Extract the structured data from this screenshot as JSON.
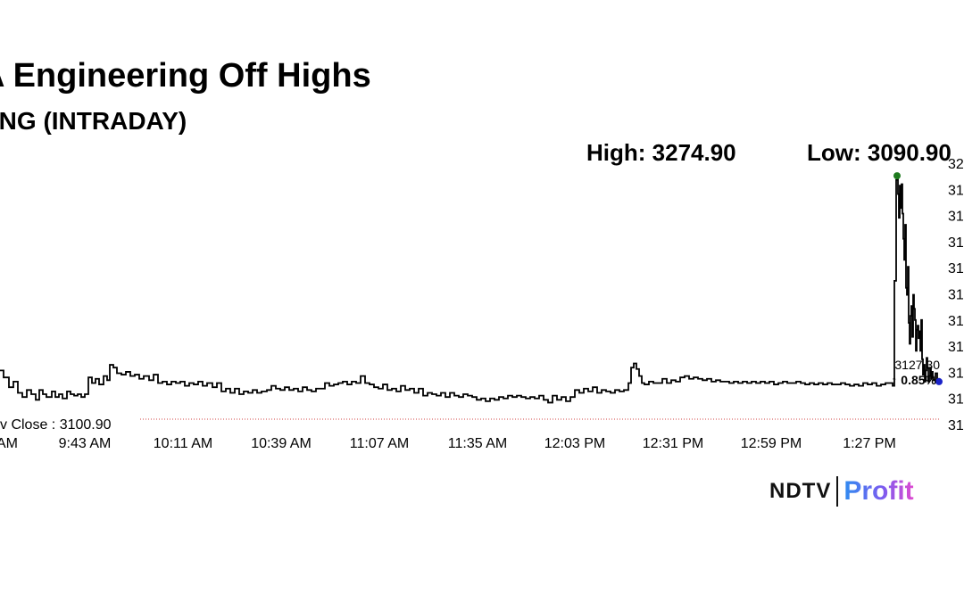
{
  "chart_data": {
    "type": "line",
    "title": "A Engineering Off Highs",
    "subtitle": "ENG (INTRADAY)",
    "high_label": "High: 3274.90",
    "low_label": "Low: 3090.90",
    "prev_close": 3100.9,
    "prev_close_label": "v Close : 3100.90",
    "last_price_label": "3127.30",
    "change_label": "↑ 0.85%",
    "x_ticks": [
      "AM",
      "9:43 AM",
      "10:11 AM",
      "10:39 AM",
      "11:07 AM",
      "11:35 AM",
      "12:03 PM",
      "12:31 PM",
      "12:59 PM",
      "1:27 PM"
    ],
    "y_ticks": [
      "32",
      "31",
      "31",
      "31",
      "31",
      "31",
      "31",
      "31",
      "31",
      "31",
      "31"
    ],
    "ylim": [
      3098,
      3277
    ],
    "series": [
      {
        "values": [
          [
            0,
            3136
          ],
          [
            4,
            3131
          ],
          [
            10,
            3124
          ],
          [
            15,
            3128
          ],
          [
            20,
            3120
          ],
          [
            25,
            3117
          ],
          [
            30,
            3122
          ],
          [
            35,
            3119
          ],
          [
            40,
            3115
          ],
          [
            44,
            3122
          ],
          [
            48,
            3119
          ],
          [
            52,
            3117
          ],
          [
            58,
            3121
          ],
          [
            62,
            3117
          ],
          [
            66,
            3119
          ],
          [
            70,
            3116
          ],
          [
            75,
            3121
          ],
          [
            79,
            3119
          ],
          [
            83,
            3118
          ],
          [
            87,
            3119
          ],
          [
            91,
            3117
          ],
          [
            95,
            3119
          ],
          [
            99,
            3131
          ],
          [
            103,
            3127
          ],
          [
            107,
            3130
          ],
          [
            111,
            3126
          ],
          [
            116,
            3132
          ],
          [
            120,
            3129
          ],
          [
            123,
            3140
          ],
          [
            127,
            3138
          ],
          [
            131,
            3134
          ],
          [
            136,
            3133
          ],
          [
            141,
            3135
          ],
          [
            146,
            3132
          ],
          [
            151,
            3133
          ],
          [
            156,
            3130
          ],
          [
            161,
            3132
          ],
          [
            167,
            3129
          ],
          [
            172,
            3133
          ],
          [
            177,
            3127
          ],
          [
            182,
            3128
          ],
          [
            187,
            3126
          ],
          [
            192,
            3128
          ],
          [
            197,
            3127
          ],
          [
            202,
            3128
          ],
          [
            207,
            3125
          ],
          [
            212,
            3127
          ],
          [
            217,
            3126
          ],
          [
            222,
            3128
          ],
          [
            227,
            3125
          ],
          [
            232,
            3127
          ],
          [
            238,
            3124
          ],
          [
            243,
            3127
          ],
          [
            248,
            3121
          ],
          [
            253,
            3123
          ],
          [
            258,
            3120
          ],
          [
            263,
            3123
          ],
          [
            268,
            3119
          ],
          [
            273,
            3121
          ],
          [
            278,
            3120
          ],
          [
            283,
            3122
          ],
          [
            288,
            3120
          ],
          [
            293,
            3121
          ],
          [
            299,
            3122
          ],
          [
            304,
            3125
          ],
          [
            309,
            3123
          ],
          [
            314,
            3122
          ],
          [
            319,
            3124
          ],
          [
            324,
            3122
          ],
          [
            329,
            3123
          ],
          [
            334,
            3121
          ],
          [
            339,
            3124
          ],
          [
            344,
            3122
          ],
          [
            349,
            3121
          ],
          [
            354,
            3123
          ],
          [
            359,
            3123
          ],
          [
            364,
            3127
          ],
          [
            369,
            3125
          ],
          [
            374,
            3126
          ],
          [
            379,
            3127
          ],
          [
            384,
            3128
          ],
          [
            389,
            3126
          ],
          [
            394,
            3128
          ],
          [
            399,
            3127
          ],
          [
            404,
            3132
          ],
          [
            409,
            3127
          ],
          [
            414,
            3126
          ],
          [
            419,
            3124
          ],
          [
            424,
            3123
          ],
          [
            429,
            3126
          ],
          [
            434,
            3122
          ],
          [
            439,
            3123
          ],
          [
            444,
            3121
          ],
          [
            449,
            3125
          ],
          [
            454,
            3122
          ],
          [
            459,
            3123
          ],
          [
            464,
            3120
          ],
          [
            469,
            3123
          ],
          [
            474,
            3118
          ],
          [
            479,
            3120
          ],
          [
            484,
            3119
          ],
          [
            489,
            3118
          ],
          [
            494,
            3120
          ],
          [
            499,
            3117
          ],
          [
            504,
            3120
          ],
          [
            509,
            3118
          ],
          [
            514,
            3117
          ],
          [
            519,
            3119
          ],
          [
            524,
            3118
          ],
          [
            529,
            3117
          ],
          [
            534,
            3115
          ],
          [
            539,
            3116
          ],
          [
            544,
            3114
          ],
          [
            549,
            3116
          ],
          [
            554,
            3115
          ],
          [
            559,
            3117
          ],
          [
            564,
            3116
          ],
          [
            569,
            3118
          ],
          [
            574,
            3117
          ],
          [
            579,
            3118
          ],
          [
            584,
            3117
          ],
          [
            589,
            3116
          ],
          [
            594,
            3117
          ],
          [
            599,
            3116
          ],
          [
            604,
            3118
          ],
          [
            609,
            3115
          ],
          [
            614,
            3113
          ],
          [
            619,
            3118
          ],
          [
            624,
            3115
          ],
          [
            629,
            3117
          ],
          [
            634,
            3114
          ],
          [
            639,
            3117
          ],
          [
            644,
            3122
          ],
          [
            649,
            3120
          ],
          [
            654,
            3123
          ],
          [
            659,
            3121
          ],
          [
            664,
            3124
          ],
          [
            669,
            3120
          ],
          [
            674,
            3122
          ],
          [
            679,
            3121
          ],
          [
            684,
            3120
          ],
          [
            689,
            3122
          ],
          [
            694,
            3121
          ],
          [
            699,
            3122
          ],
          [
            704,
            3127
          ],
          [
            707,
            3138
          ],
          [
            710,
            3141
          ],
          [
            713,
            3137
          ],
          [
            716,
            3132
          ],
          [
            719,
            3127
          ],
          [
            722,
            3126
          ],
          [
            727,
            3128
          ],
          [
            732,
            3127
          ],
          [
            737,
            3127
          ],
          [
            742,
            3130
          ],
          [
            747,
            3127
          ],
          [
            752,
            3129
          ],
          [
            757,
            3128
          ],
          [
            762,
            3131
          ],
          [
            767,
            3132
          ],
          [
            772,
            3130
          ],
          [
            777,
            3131
          ],
          [
            782,
            3130
          ],
          [
            787,
            3129
          ],
          [
            792,
            3130
          ],
          [
            797,
            3128
          ],
          [
            802,
            3129
          ],
          [
            807,
            3128
          ],
          [
            812,
            3128
          ],
          [
            817,
            3127
          ],
          [
            822,
            3128
          ],
          [
            827,
            3127
          ],
          [
            832,
            3128
          ],
          [
            837,
            3127
          ],
          [
            842,
            3128
          ],
          [
            847,
            3127
          ],
          [
            852,
            3128
          ],
          [
            857,
            3127
          ],
          [
            862,
            3128
          ],
          [
            867,
            3126
          ],
          [
            872,
            3127
          ],
          [
            877,
            3128
          ],
          [
            882,
            3127
          ],
          [
            887,
            3127
          ],
          [
            892,
            3128
          ],
          [
            897,
            3127
          ],
          [
            902,
            3126
          ],
          [
            907,
            3127
          ],
          [
            912,
            3126
          ],
          [
            917,
            3127
          ],
          [
            922,
            3126
          ],
          [
            927,
            3127
          ],
          [
            932,
            3126
          ],
          [
            937,
            3126
          ],
          [
            942,
            3127
          ],
          [
            947,
            3126
          ],
          [
            952,
            3125
          ],
          [
            957,
            3126
          ],
          [
            962,
            3125
          ],
          [
            967,
            3127
          ],
          [
            972,
            3126
          ],
          [
            977,
            3127
          ],
          [
            982,
            3125
          ],
          [
            987,
            3126
          ],
          [
            992,
            3127
          ],
          [
            997,
            3127
          ],
          [
            1000,
            3125
          ],
          [
            1002,
            3200
          ],
          [
            1004,
            3272
          ],
          [
            1005,
            3275
          ],
          [
            1006,
            3262
          ],
          [
            1007,
            3245
          ],
          [
            1008,
            3268
          ],
          [
            1009,
            3252
          ],
          [
            1010,
            3269
          ],
          [
            1011,
            3248
          ],
          [
            1012,
            3230
          ],
          [
            1013,
            3215
          ],
          [
            1014,
            3240
          ],
          [
            1015,
            3195
          ],
          [
            1016,
            3190
          ],
          [
            1017,
            3210
          ],
          [
            1018,
            3170
          ],
          [
            1019,
            3155
          ],
          [
            1020,
            3175
          ],
          [
            1021,
            3182
          ],
          [
            1022,
            3160
          ],
          [
            1023,
            3190
          ],
          [
            1024,
            3180
          ],
          [
            1025,
            3172
          ],
          [
            1026,
            3150
          ],
          [
            1027,
            3165
          ],
          [
            1028,
            3168
          ],
          [
            1029,
            3159
          ],
          [
            1030,
            3164
          ],
          [
            1031,
            3150
          ],
          [
            1032,
            3172
          ],
          [
            1033,
            3144
          ],
          [
            1034,
            3133
          ],
          [
            1035,
            3140
          ],
          [
            1036,
            3128
          ],
          [
            1037,
            3136
          ],
          [
            1038,
            3145
          ],
          [
            1039,
            3138
          ],
          [
            1040,
            3128
          ],
          [
            1041,
            3132
          ],
          [
            1042,
            3138
          ],
          [
            1043,
            3130
          ],
          [
            1044,
            3135
          ],
          [
            1045,
            3131
          ],
          [
            1046,
            3129
          ],
          [
            1048,
            3134
          ],
          [
            1050,
            3130
          ],
          [
            1052,
            3128
          ]
        ]
      }
    ],
    "colors": {
      "line": "#000000",
      "high_marker": "#1e7a1e",
      "last_marker": "#1a22c8",
      "prev_close_line": "#d04040",
      "change": "#1e7a1e"
    }
  },
  "logo": {
    "brand": "NDTV",
    "product": "Profit"
  }
}
